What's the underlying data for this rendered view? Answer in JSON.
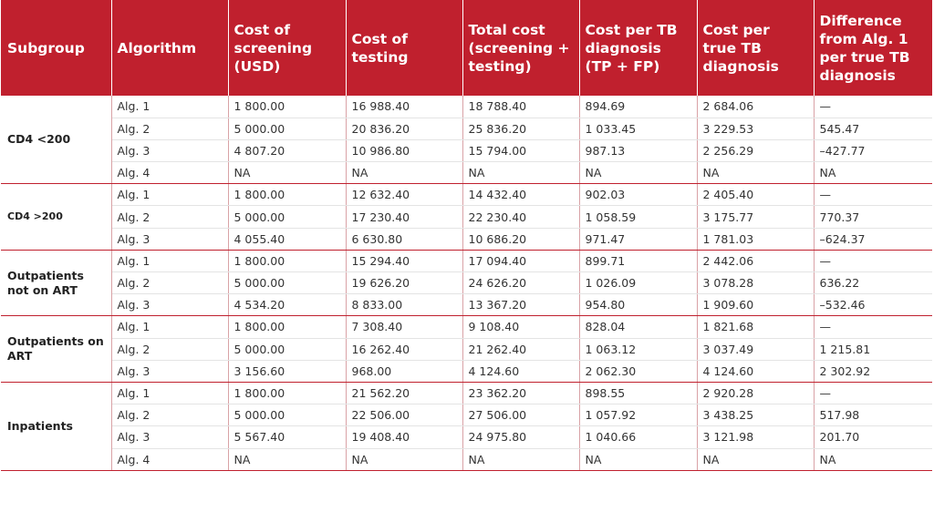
{
  "headers": [
    "Subgroup",
    "Algorithm",
    "Cost of screening (USD)",
    "Cost of testing",
    "Total cost (screening + testing)",
    "Cost per TB diagnosis (TP + FP)",
    "Cost per true TB diagnosis",
    "Difference from Alg. 1 per true TB diagnosis"
  ],
  "groups": [
    {
      "subgroup": "CD4 <200",
      "rows": [
        [
          "Alg. 1",
          "1 800.00",
          "16 988.40",
          "18 788.40",
          "894.69",
          "2 684.06",
          "—"
        ],
        [
          "Alg. 2",
          "5 000.00",
          "20 836.20",
          "25 836.20",
          "1 033.45",
          "3 229.53",
          "545.47"
        ],
        [
          "Alg. 3",
          "4 807.20",
          "10 986.80",
          "15 794.00",
          "987.13",
          "2 256.29",
          "–427.77"
        ],
        [
          "Alg. 4",
          "NA",
          "NA",
          "NA",
          "NA",
          "NA",
          "NA"
        ]
      ]
    },
    {
      "subgroup": "CD4 >200",
      "rows": [
        [
          "Alg. 1",
          "1 800.00",
          "12 632.40",
          "14 432.40",
          "902.03",
          "2 405.40",
          "—"
        ],
        [
          "Alg. 2",
          "5 000.00",
          "17 230.40",
          "22 230.40",
          "1 058.59",
          "3 175.77",
          "770.37"
        ],
        [
          "Alg. 3",
          "4 055.40",
          "6 630.80",
          "10 686.20",
          "971.47",
          "1 781.03",
          "–624.37"
        ]
      ]
    },
    {
      "subgroup": "Outpatients not on ART",
      "rows": [
        [
          "Alg. 1",
          "1 800.00",
          "15 294.40",
          "17 094.40",
          "899.71",
          "2 442.06",
          "—"
        ],
        [
          "Alg. 2",
          "5 000.00",
          "19 626.20",
          "24 626.20",
          "1 026.09",
          "3 078.28",
          "636.22"
        ],
        [
          "Alg. 3",
          "4 534.20",
          "8 833.00",
          "13 367.20",
          "954.80",
          "1 909.60",
          "–532.46"
        ]
      ]
    },
    {
      "subgroup": "Outpatients on ART",
      "rows": [
        [
          "Alg. 1",
          "1 800.00",
          "7 308.40",
          "9 108.40",
          "828.04",
          "1 821.68",
          "—"
        ],
        [
          "Alg. 2",
          "5 000.00",
          "16 262.40",
          "21 262.40",
          "1 063.12",
          "3 037.49",
          "1 215.81"
        ],
        [
          "Alg. 3",
          "3 156.60",
          "968.00",
          "4 124.60",
          "2 062.30",
          "4 124.60",
          "2 302.92"
        ]
      ]
    },
    {
      "subgroup": "Inpatients",
      "rows": [
        [
          "Alg. 1",
          "1 800.00",
          "21 562.20",
          "23 362.20",
          "898.55",
          "2 920.28",
          "—"
        ],
        [
          "Alg. 2",
          "5 000.00",
          "22 506.00",
          "27 506.00",
          "1 057.92",
          "3 438.25",
          "517.98"
        ],
        [
          "Alg. 3",
          "5 567.40",
          "19 408.40",
          "24 975.80",
          "1 040.66",
          "3 121.98",
          "201.70"
        ],
        [
          "Alg. 4",
          "NA",
          "NA",
          "NA",
          "NA",
          "NA",
          "NA"
        ]
      ]
    }
  ]
}
